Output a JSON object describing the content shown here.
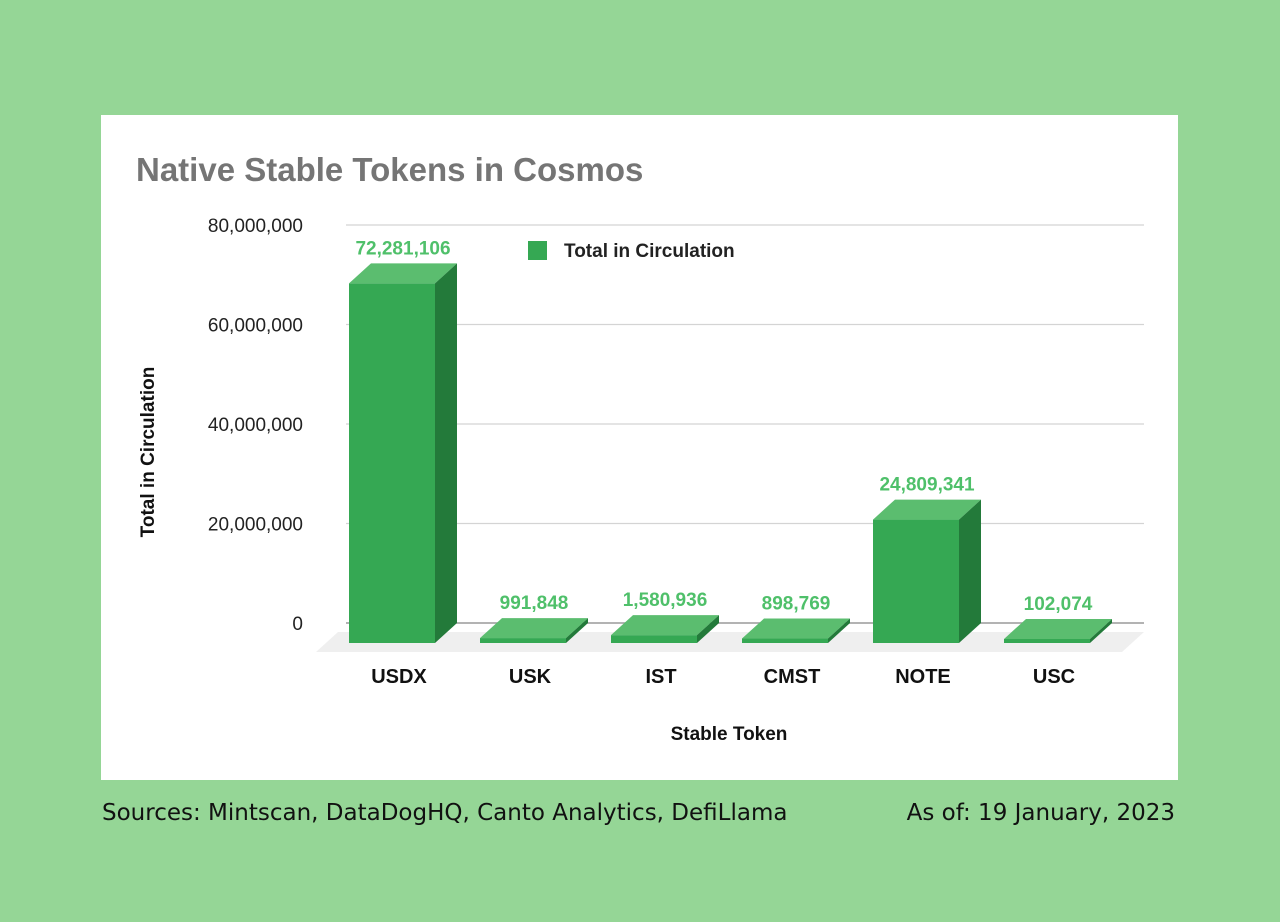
{
  "footer": {
    "sources": "Sources: Mintscan, DataDogHQ, Canto Analytics, DefiLlama",
    "as_of": "As of: 19 January, 2023"
  },
  "colors": {
    "background": "#95d696",
    "bar_front": "#35a853",
    "bar_top": "#5bbd6f",
    "bar_side": "#237a3a",
    "label": "#4fc06a"
  },
  "chart_data": {
    "type": "bar",
    "style": "3d",
    "title": "Native Stable Tokens in Cosmos",
    "xlabel": "Stable Token",
    "ylabel": "Total in Circulation",
    "ylim": [
      0,
      80000000
    ],
    "yticks": [
      0,
      20000000,
      40000000,
      60000000,
      80000000
    ],
    "ytick_labels": [
      "0",
      "20,000,000",
      "40,000,000",
      "60,000,000",
      "80,000,000"
    ],
    "grid": true,
    "legend_position": "top",
    "categories": [
      "USDX",
      "USK",
      "IST",
      "CMST",
      "NOTE",
      "USC"
    ],
    "series": [
      {
        "name": "Total in Circulation",
        "values": [
          72281106,
          991848,
          1580936,
          898769,
          24809341,
          102074
        ],
        "value_labels": [
          "72,281,106",
          "991,848",
          "1,580,936",
          "898,769",
          "24,809,341",
          "102,074"
        ]
      }
    ]
  }
}
